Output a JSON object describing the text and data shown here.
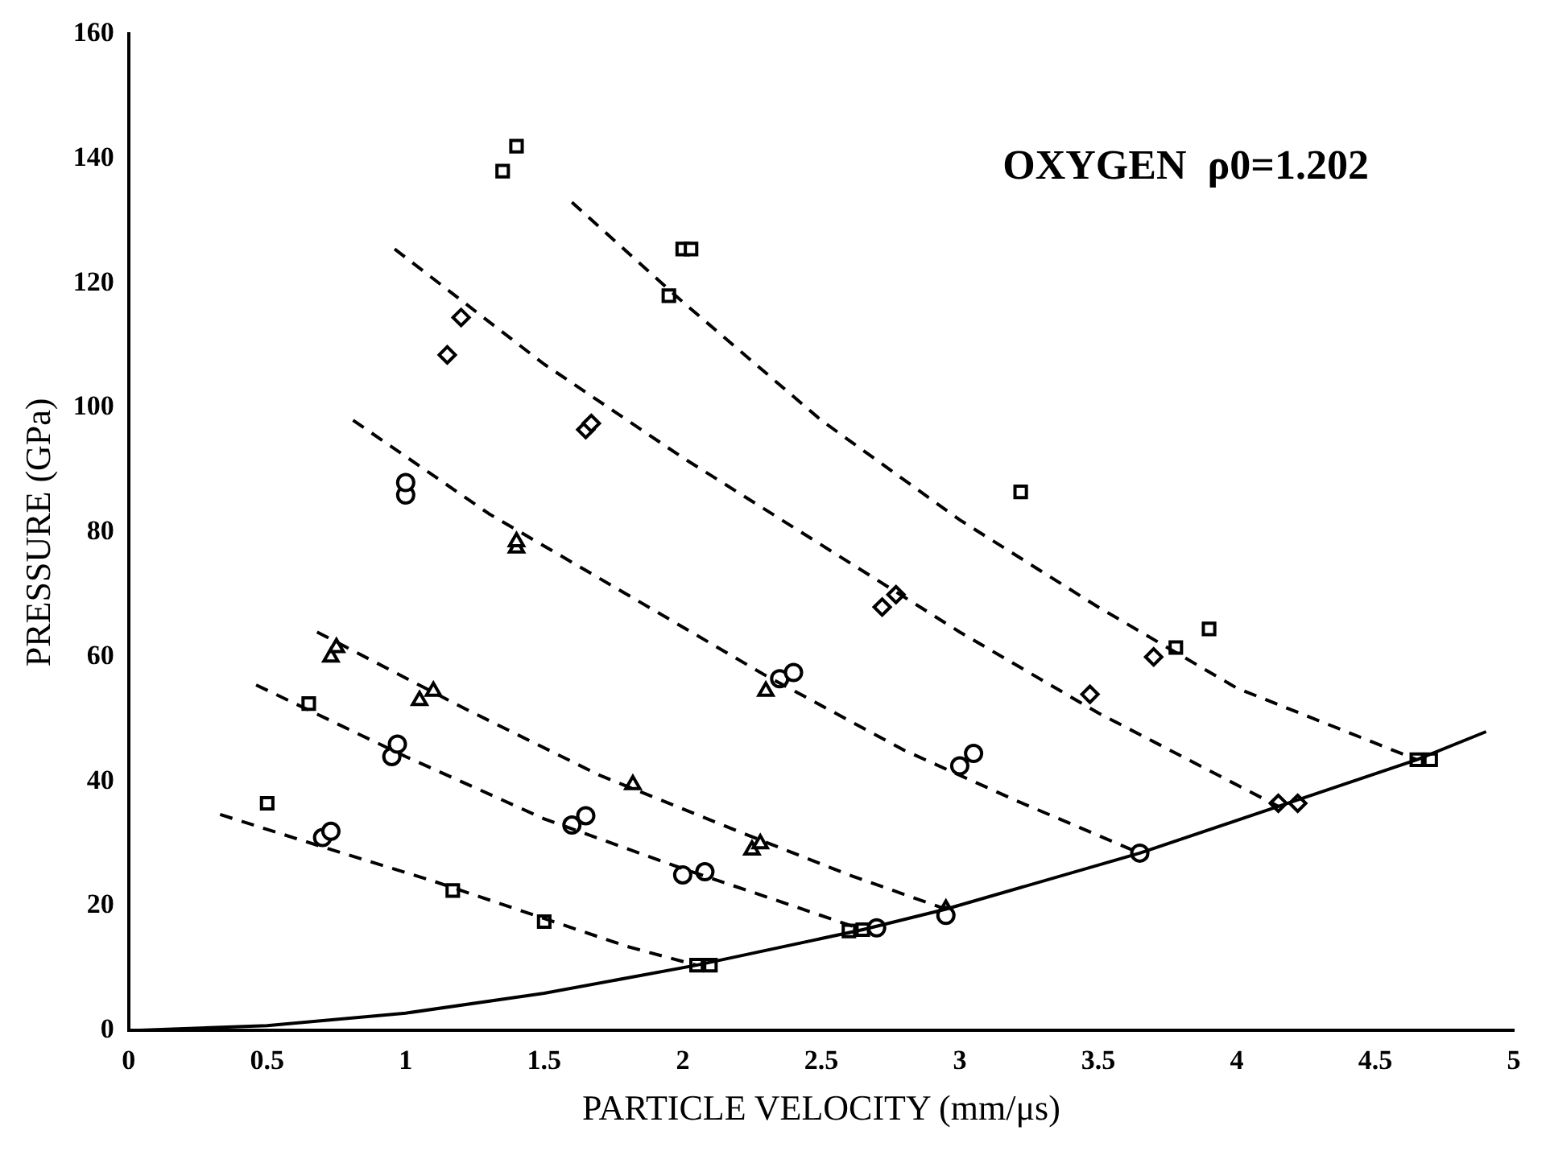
{
  "chart_data": {
    "type": "line",
    "xlabel": "PARTICLE VELOCITY (mm/μs)",
    "ylabel": "PRESSURE (GPa)",
    "annotations": [
      "OXYGEN  ρ0=1.202"
    ],
    "xlim": [
      0,
      5
    ],
    "xticks": [
      0,
      0.5,
      1,
      1.5,
      2,
      2.5,
      3,
      3.5,
      4,
      4.5,
      5
    ],
    "ylim": [
      0,
      160
    ],
    "yticks": [
      0,
      20,
      40,
      60,
      80,
      100,
      120,
      140,
      160
    ],
    "grid": false,
    "legend": false,
    "series": [
      {
        "color": "#000000",
        "line_style": "solid",
        "marker": "none",
        "x": [
          0,
          0.5,
          1,
          1.5,
          2.05,
          2.65,
          2.95,
          3.65,
          4.15,
          4.65,
          4.9
        ],
        "values": [
          0,
          0.8,
          2.8,
          6,
          10.5,
          16.2,
          19.5,
          28.5,
          36,
          43.5,
          48
        ]
      },
      {
        "color": "#000000",
        "line_style": "dashed",
        "marker": "none",
        "x": [
          0.33,
          0.7,
          1.1,
          1.5,
          1.8,
          2.05
        ],
        "values": [
          34.7,
          29.5,
          24,
          18,
          13.5,
          10.5
        ]
      },
      {
        "color": "#000000",
        "line_style": "dashed",
        "marker": "none",
        "x": [
          0.46,
          1.0,
          1.5,
          2.0,
          2.3,
          2.65
        ],
        "values": [
          55.5,
          44,
          34,
          26,
          21.5,
          16.2
        ]
      },
      {
        "color": "#000000",
        "line_style": "dashed",
        "marker": "none",
        "x": [
          0.68,
          1.2,
          1.7,
          2.2,
          2.6,
          2.95
        ],
        "values": [
          64,
          52,
          41,
          32,
          25,
          19.5
        ]
      },
      {
        "color": "#000000",
        "line_style": "dashed",
        "marker": "none",
        "x": [
          0.81,
          1.3,
          1.8,
          2.3,
          2.8,
          3.2,
          3.65
        ],
        "values": [
          98,
          83,
          70,
          57,
          45,
          37,
          28.5
        ]
      },
      {
        "color": "#000000",
        "line_style": "dashed",
        "marker": "none",
        "x": [
          0.96,
          1.5,
          2.0,
          2.5,
          3.0,
          3.5,
          4.15
        ],
        "values": [
          125.5,
          107,
          92,
          78,
          64,
          51,
          36
        ]
      },
      {
        "color": "#000000",
        "line_style": "dashed",
        "marker": "none",
        "x": [
          1.6,
          2.0,
          2.5,
          3.0,
          3.5,
          4.0,
          4.65
        ],
        "values": [
          133,
          117,
          98,
          82,
          68,
          55,
          43.5
        ]
      },
      {
        "type": "scatter",
        "color": "#000000",
        "marker": "square",
        "x": [
          0.5,
          0.65,
          1.17,
          1.5,
          2.05,
          2.1,
          2.6,
          2.65,
          1.35,
          1.4,
          1.95,
          2.0,
          2.03,
          3.22,
          3.78,
          3.9,
          4.65,
          4.7
        ],
        "values": [
          36.5,
          52.5,
          22.5,
          17.5,
          10.5,
          10.5,
          16,
          16.2,
          138,
          142,
          118,
          125.5,
          125.5,
          86.5,
          61.5,
          64.5,
          43.5,
          43.5
        ]
      },
      {
        "type": "scatter",
        "color": "#000000",
        "marker": "circle",
        "x": [
          0.7,
          0.73,
          0.95,
          0.97,
          1.6,
          1.65,
          2.0,
          2.08,
          2.7,
          2.95,
          3.0,
          3.05,
          3.65,
          1.0,
          1.0,
          2.35,
          2.4
        ],
        "values": [
          31,
          32,
          44,
          46,
          33,
          34.5,
          25,
          25.5,
          16.5,
          18.5,
          42.5,
          44.5,
          28.5,
          86,
          88,
          56.5,
          57.5
        ]
      },
      {
        "type": "scatter",
        "color": "#000000",
        "marker": "triangle",
        "x": [
          0.73,
          0.75,
          1.05,
          1.1,
          1.4,
          1.4,
          1.82,
          2.25,
          2.28,
          2.95,
          2.3
        ],
        "values": [
          60,
          61.5,
          53,
          54.5,
          77.5,
          78.5,
          39.5,
          29,
          30,
          19.5,
          54.5
        ]
      },
      {
        "type": "scatter",
        "color": "#000000",
        "marker": "diamond",
        "x": [
          1.15,
          1.2,
          1.65,
          1.67,
          2.72,
          2.77,
          3.47,
          3.7,
          4.15,
          4.22
        ],
        "values": [
          108.5,
          114.5,
          96.5,
          97.5,
          68,
          70,
          54,
          60,
          36.5,
          36.5
        ]
      }
    ]
  }
}
